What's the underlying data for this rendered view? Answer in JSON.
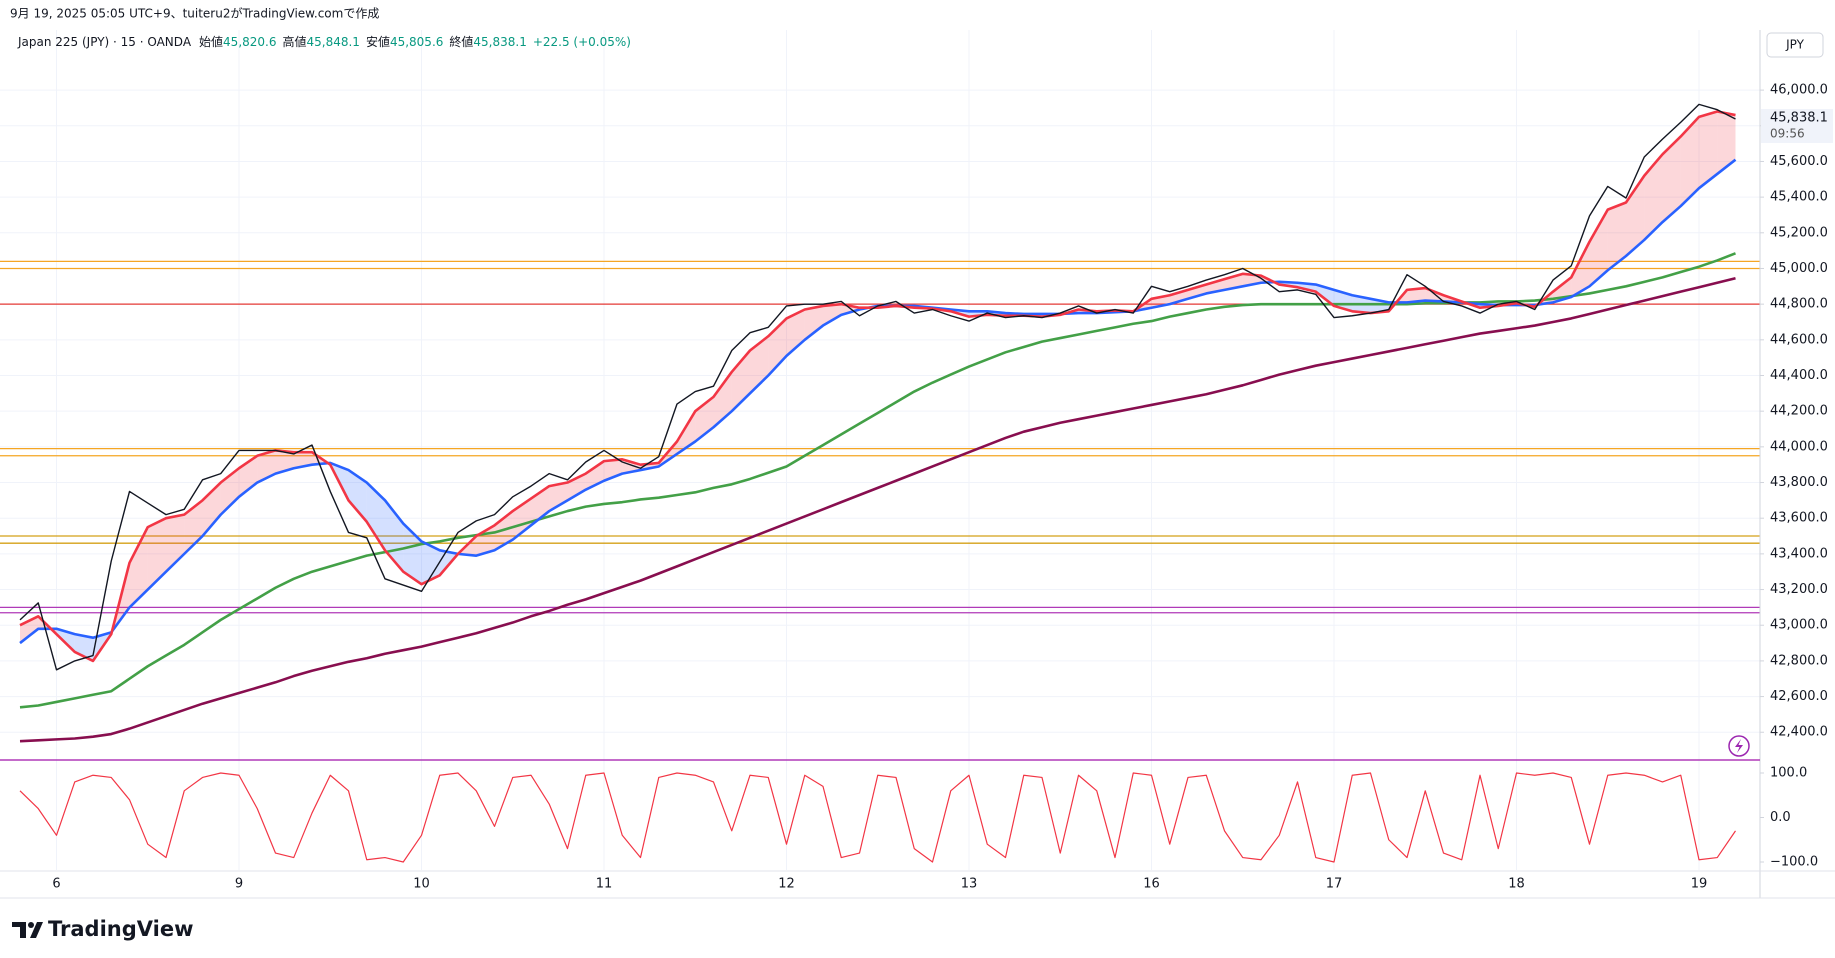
{
  "header": {
    "caption": "9月 19, 2025 05:05 UTC+9、tuiteru2がTradingView.comで作成",
    "currency": "JPY",
    "brand": "TradingView"
  },
  "chart_data": [
    {
      "type": "line",
      "title": "Japan 225 (JPY) · 15 · OANDA",
      "ohlc": [
        {
          "label": "始値",
          "value": "45,820.6"
        },
        {
          "label": "高値",
          "value": "45,848.1"
        },
        {
          "label": "安値",
          "value": "45,805.6"
        },
        {
          "label": "終値",
          "value": "45,838.1"
        }
      ],
      "change": "+22.5 (+0.05%)",
      "last_price": {
        "value": 45838.1,
        "label": "45,838.1"
      },
      "countdown": "09:56",
      "categories": [
        null,
        null,
        "6",
        null,
        null,
        null,
        null,
        null,
        null,
        null,
        null,
        null,
        "9",
        null,
        null,
        null,
        null,
        null,
        null,
        null,
        null,
        null,
        "10",
        null,
        null,
        null,
        null,
        null,
        null,
        null,
        null,
        null,
        "11",
        null,
        null,
        null,
        null,
        null,
        null,
        null,
        null,
        null,
        "12",
        null,
        null,
        null,
        null,
        null,
        null,
        null,
        null,
        null,
        "13",
        null,
        null,
        null,
        null,
        null,
        null,
        null,
        null,
        null,
        "16",
        null,
        null,
        null,
        null,
        null,
        null,
        null,
        null,
        null,
        "17",
        null,
        null,
        null,
        null,
        null,
        null,
        null,
        null,
        null,
        "18",
        null,
        null,
        null,
        null,
        null,
        null,
        null,
        null,
        null,
        "19",
        null,
        null
      ],
      "series": [
        {
          "color": "#131722",
          "values": [
            43030,
            43125,
            42750,
            42800,
            42830,
            43360,
            43750,
            43685,
            43620,
            43650,
            43815,
            43850,
            43980,
            43980,
            43980,
            43960,
            44010,
            43750,
            43520,
            43490,
            43260,
            43225,
            43190,
            43355,
            43520,
            43585,
            43620,
            43720,
            43780,
            43850,
            43815,
            43915,
            43980,
            43915,
            43880,
            43945,
            44240,
            44310,
            44340,
            44540,
            44640,
            44670,
            44790,
            44800,
            44800,
            44815,
            44735,
            44790,
            44815,
            44750,
            44770,
            44735,
            44705,
            44750,
            44725,
            44735,
            44725,
            44750,
            44790,
            44750,
            44770,
            44750,
            44900,
            44870,
            44900,
            44935,
            44965,
            45000,
            44945,
            44870,
            44880,
            44855,
            44725,
            44735,
            44750,
            44770,
            44965,
            44900,
            44815,
            44790,
            44750,
            44800,
            44815,
            44770,
            44935,
            45015,
            45295,
            45460,
            45395,
            45625,
            45725,
            45820,
            45920,
            45890,
            45838.1
          ]
        },
        {
          "color": "#f23645",
          "values": [
            43000,
            43050,
            42950,
            42850,
            42800,
            42950,
            43350,
            43550,
            43600,
            43620,
            43700,
            43800,
            43880,
            43950,
            43980,
            43970,
            43970,
            43900,
            43700,
            43580,
            43420,
            43300,
            43230,
            43280,
            43400,
            43500,
            43560,
            43640,
            43710,
            43780,
            43800,
            43850,
            43920,
            43930,
            43900,
            43910,
            44030,
            44200,
            44280,
            44420,
            44540,
            44620,
            44720,
            44770,
            44790,
            44800,
            44780,
            44780,
            44790,
            44780,
            44775,
            44760,
            44730,
            44740,
            44735,
            44735,
            44730,
            44740,
            44770,
            44760,
            44765,
            44760,
            44830,
            44850,
            44880,
            44910,
            44940,
            44970,
            44960,
            44910,
            44895,
            44870,
            44790,
            44760,
            44750,
            44760,
            44880,
            44890,
            44850,
            44815,
            44780,
            44790,
            44805,
            44785,
            44870,
            44950,
            45150,
            45330,
            45370,
            45520,
            45640,
            45740,
            45850,
            45880,
            45860
          ]
        },
        {
          "color": "#2962ff",
          "values": [
            42900,
            42980,
            42980,
            42950,
            42930,
            42960,
            43100,
            43200,
            43300,
            43400,
            43500,
            43620,
            43720,
            43800,
            43850,
            43880,
            43900,
            43910,
            43870,
            43800,
            43700,
            43570,
            43470,
            43420,
            43400,
            43390,
            43420,
            43480,
            43560,
            43640,
            43700,
            43760,
            43810,
            43850,
            43870,
            43890,
            43960,
            44030,
            44110,
            44200,
            44300,
            44400,
            44510,
            44600,
            44680,
            44740,
            44770,
            44790,
            44790,
            44790,
            44780,
            44770,
            44760,
            44760,
            44750,
            44745,
            44745,
            44745,
            44750,
            44750,
            44755,
            44760,
            44780,
            44800,
            44830,
            44860,
            44880,
            44900,
            44920,
            44925,
            44920,
            44910,
            44880,
            44850,
            44830,
            44810,
            44810,
            44820,
            44815,
            44810,
            44800,
            44795,
            44795,
            44795,
            44810,
            44840,
            44900,
            44990,
            45070,
            45160,
            45260,
            45350,
            45450,
            45530,
            45610
          ]
        },
        {
          "color": "#43a047",
          "values": [
            42540,
            42550,
            42570,
            42590,
            42610,
            42630,
            42700,
            42770,
            42830,
            42890,
            42960,
            43030,
            43090,
            43150,
            43210,
            43260,
            43300,
            43330,
            43360,
            43390,
            43410,
            43430,
            43455,
            43470,
            43490,
            43505,
            43520,
            43550,
            43580,
            43610,
            43640,
            43665,
            43680,
            43690,
            43705,
            43715,
            43730,
            43745,
            43770,
            43790,
            43820,
            43855,
            43890,
            43950,
            44010,
            44070,
            44130,
            44190,
            44250,
            44310,
            44360,
            44405,
            44450,
            44490,
            44530,
            44560,
            44590,
            44610,
            44630,
            44650,
            44670,
            44690,
            44705,
            44730,
            44750,
            44770,
            44785,
            44795,
            44800,
            44800,
            44800,
            44800,
            44800,
            44800,
            44800,
            44800,
            44800,
            44805,
            44805,
            44810,
            44810,
            44815,
            44815,
            44820,
            44830,
            44845,
            44860,
            44880,
            44900,
            44925,
            44950,
            44980,
            45010,
            45045,
            45085
          ]
        },
        {
          "color": "#880e4f",
          "values": [
            42350,
            42355,
            42360,
            42365,
            42375,
            42390,
            42420,
            42455,
            42490,
            42525,
            42560,
            42590,
            42620,
            42650,
            42680,
            42715,
            42745,
            42770,
            42795,
            42815,
            42840,
            42860,
            42880,
            42905,
            42930,
            42955,
            42985,
            43015,
            43050,
            43080,
            43115,
            43145,
            43180,
            43215,
            43250,
            43290,
            43330,
            43370,
            43410,
            43450,
            43490,
            43530,
            43570,
            43610,
            43650,
            43690,
            43730,
            43770,
            43810,
            43850,
            43890,
            43930,
            43970,
            44010,
            44050,
            44085,
            44110,
            44135,
            44155,
            44175,
            44195,
            44215,
            44235,
            44255,
            44275,
            44295,
            44320,
            44345,
            44375,
            44405,
            44430,
            44455,
            44475,
            44495,
            44515,
            44535,
            44555,
            44575,
            44595,
            44615,
            44635,
            44650,
            44665,
            44680,
            44700,
            44720,
            44745,
            44770,
            44795,
            44820,
            44845,
            44870,
            44895,
            44920,
            44945
          ]
        }
      ],
      "hlines": [
        {
          "value": 45040,
          "color": "#f5a623"
        },
        {
          "value": 45000,
          "color": "#f5a623"
        },
        {
          "value": 44800,
          "color": "#e53935"
        },
        {
          "value": 43990,
          "color": "#f5a623"
        },
        {
          "value": 43950,
          "color": "#f5a623"
        },
        {
          "value": 43500,
          "color": "#d4a017"
        },
        {
          "value": 43460,
          "color": "#d4a017"
        },
        {
          "value": 43100,
          "color": "#b03ab8"
        },
        {
          "value": 43070,
          "color": "#b03ab8"
        }
      ],
      "ylim": [
        42250,
        46180
      ],
      "yticks": [
        {
          "value": 42400,
          "label": "42,400.0"
        },
        {
          "value": 42600,
          "label": "42,600.0"
        },
        {
          "value": 42800,
          "label": "42,800.0"
        },
        {
          "value": 43000,
          "label": "43,000.0"
        },
        {
          "value": 43200,
          "label": "43,200.0"
        },
        {
          "value": 43400,
          "label": "43,400.0"
        },
        {
          "value": 43600,
          "label": "43,600.0"
        },
        {
          "value": 43800,
          "label": "43,800.0"
        },
        {
          "value": 44000,
          "label": "44,000.0"
        },
        {
          "value": 44200,
          "label": "44,200.0"
        },
        {
          "value": 44400,
          "label": "44,400.0"
        },
        {
          "value": 44600,
          "label": "44,600.0"
        },
        {
          "value": 44800,
          "label": "44,800.0"
        },
        {
          "value": 45000,
          "label": "45,000.0"
        },
        {
          "value": 45200,
          "label": "45,200.0"
        },
        {
          "value": 45400,
          "label": "45,400.0"
        },
        {
          "value": 45600,
          "label": "45,600.0"
        },
        {
          "value": 45800,
          "label": "45,800.0"
        },
        {
          "value": 46000,
          "label": "46,000.0"
        }
      ],
      "grid": true
    },
    {
      "type": "line",
      "series": [
        {
          "color": "#f23645",
          "values": [
            60,
            20,
            -40,
            80,
            95,
            90,
            40,
            -60,
            -90,
            60,
            90,
            100,
            95,
            20,
            -80,
            -90,
            10,
            95,
            60,
            -95,
            -90,
            -100,
            -40,
            95,
            100,
            60,
            -20,
            90,
            95,
            30,
            -70,
            95,
            100,
            -40,
            -90,
            90,
            100,
            95,
            80,
            -30,
            95,
            90,
            -60,
            95,
            70,
            -90,
            -80,
            95,
            90,
            -70,
            -100,
            60,
            95,
            -60,
            -90,
            95,
            90,
            -80,
            95,
            60,
            -90,
            100,
            95,
            -60,
            90,
            95,
            -30,
            -90,
            -95,
            -40,
            80,
            -90,
            -100,
            95,
            100,
            -50,
            -90,
            60,
            -80,
            -95,
            95,
            -70,
            100,
            95,
            100,
            90,
            -60,
            95,
            100,
            95,
            80,
            95,
            -95,
            -90,
            -30
          ]
        }
      ],
      "ylim": [
        -118,
        127
      ],
      "yticks": [
        {
          "value": 100,
          "label": "100.0"
        },
        {
          "value": 0,
          "label": "0.0"
        },
        {
          "value": -100,
          "label": "−100.0"
        }
      ]
    }
  ]
}
